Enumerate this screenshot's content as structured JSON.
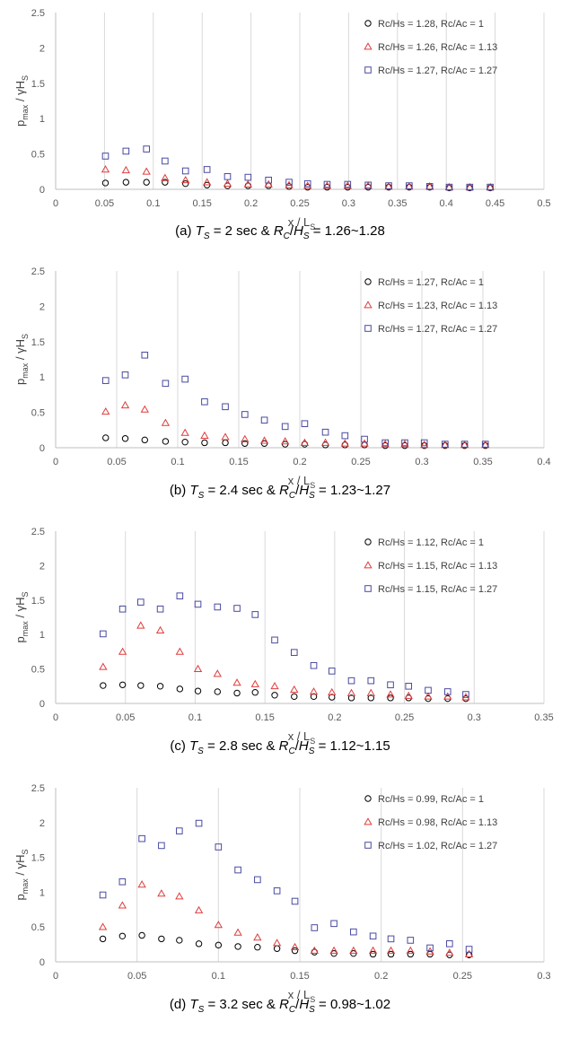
{
  "captions": [
    {
      "label": "(a)",
      "T": "T",
      "Tsub": "S",
      "t_val": "= 2 sec",
      "R": "R",
      "Rsub": "C",
      "H": "H",
      "Hsub": "S",
      "range": "= 1.26~1.28"
    },
    {
      "label": "(b)",
      "T": "T",
      "Tsub": "S",
      "t_val": "= 2.4 sec",
      "R": "R",
      "Rsub": "C",
      "H": "H",
      "Hsub": "S",
      "range": "= 1.23~1.27"
    },
    {
      "label": "(c)",
      "T": "T",
      "Tsub": "S",
      "t_val": "= 2.8 sec",
      "R": "R",
      "Rsub": "C",
      "H": "H",
      "Hsub": "S",
      "range": "= 1.12~1.15"
    },
    {
      "label": "(d)",
      "T": "T",
      "Tsub": "S",
      "t_val": "= 3.2 sec",
      "R": "R",
      "Rsub": "C",
      "H": "H",
      "Hsub": "S",
      "range": "= 0.98~1.02"
    }
  ],
  "series_colors": {
    "circle": "#000000",
    "triangle": "#e03c3c",
    "square": "#4a4aa0"
  },
  "chart_data": [
    {
      "type": "scatter",
      "xlabel": "x / L",
      "xlabel_sub": "S",
      "ylabel": "p",
      "ylabel_sub": "max",
      "ylabel_mid": " / γH",
      "ylabel_sub2": "S",
      "xlim": [
        0,
        0.5
      ],
      "ylim": [
        0,
        2.5
      ],
      "xticks": [
        0,
        0.05,
        0.1,
        0.15,
        0.2,
        0.25,
        0.3,
        0.35,
        0.4,
        0.45,
        0.5
      ],
      "xtick_labels": [
        "0",
        "0.05",
        "0.1",
        "0.15",
        "0.2",
        "0.25",
        "0.3",
        "0.35",
        "0.4",
        "0.45",
        "0.5"
      ],
      "yticks": [
        0,
        0.5,
        1,
        1.5,
        2,
        2.5
      ],
      "ytick_labels": [
        "0",
        "0.5",
        "1",
        "1.5",
        "2",
        "2.5"
      ],
      "grid": "vertical",
      "legend": "top-right",
      "series": [
        {
          "name": "Rc/Hs = 1.28, Rc/Ac = 1",
          "marker": "circle",
          "x": [
            0.051,
            0.072,
            0.093,
            0.112,
            0.133,
            0.155,
            0.176,
            0.197,
            0.218,
            0.239,
            0.258,
            0.278,
            0.299,
            0.32,
            0.341,
            0.362,
            0.383,
            0.403,
            0.424,
            0.445
          ],
          "y": [
            0.09,
            0.1,
            0.1,
            0.1,
            0.08,
            0.06,
            0.05,
            0.05,
            0.05,
            0.04,
            0.03,
            0.03,
            0.03,
            0.03,
            0.03,
            0.03,
            0.03,
            0.02,
            0.02,
            0.02
          ]
        },
        {
          "name": "Rc/Hs = 1.26, Rc/Ac = 1.13",
          "marker": "triangle",
          "x": [
            0.051,
            0.072,
            0.093,
            0.112,
            0.133,
            0.155,
            0.176,
            0.197,
            0.218,
            0.239,
            0.258,
            0.278,
            0.299,
            0.32,
            0.341,
            0.362,
            0.383,
            0.403,
            0.424,
            0.445
          ],
          "y": [
            0.28,
            0.27,
            0.25,
            0.16,
            0.13,
            0.1,
            0.08,
            0.07,
            0.07,
            0.06,
            0.05,
            0.05,
            0.05,
            0.05,
            0.04,
            0.04,
            0.04,
            0.03,
            0.03,
            0.03
          ]
        },
        {
          "name": "Rc/Hs = 1.27, Rc/Ac = 1.27",
          "marker": "square",
          "x": [
            0.051,
            0.072,
            0.093,
            0.112,
            0.133,
            0.155,
            0.176,
            0.197,
            0.218,
            0.239,
            0.258,
            0.278,
            0.299,
            0.32,
            0.341,
            0.362,
            0.383,
            0.403,
            0.424,
            0.445
          ],
          "y": [
            0.47,
            0.54,
            0.57,
            0.4,
            0.26,
            0.28,
            0.18,
            0.17,
            0.13,
            0.1,
            0.08,
            0.07,
            0.07,
            0.06,
            0.05,
            0.05,
            0.04,
            0.03,
            0.03,
            0.03
          ]
        }
      ]
    },
    {
      "type": "scatter",
      "xlabel": "x / L",
      "xlabel_sub": "S",
      "ylabel": "p",
      "ylabel_sub": "max",
      "ylabel_mid": " / γH",
      "ylabel_sub2": "S",
      "xlim": [
        0,
        0.4
      ],
      "ylim": [
        0,
        2.5
      ],
      "xticks": [
        0,
        0.05,
        0.1,
        0.15,
        0.2,
        0.25,
        0.3,
        0.35,
        0.4
      ],
      "xtick_labels": [
        "0",
        "0.05",
        "0.1",
        "0.15",
        "0.2",
        "0.25",
        "0.3",
        "0.35",
        "0.4"
      ],
      "yticks": [
        0,
        0.5,
        1,
        1.5,
        2,
        2.5
      ],
      "ytick_labels": [
        "0",
        "0.5",
        "1",
        "1.5",
        "2",
        "2.5"
      ],
      "grid": "vertical",
      "legend": "top-right",
      "series": [
        {
          "name": "Rc/Hs = 1.27, Rc/Ac = 1",
          "marker": "circle",
          "x": [
            0.041,
            0.057,
            0.073,
            0.09,
            0.106,
            0.122,
            0.139,
            0.155,
            0.171,
            0.188,
            0.204,
            0.221,
            0.237,
            0.253,
            0.27,
            0.286,
            0.302,
            0.319,
            0.335,
            0.352
          ],
          "y": [
            0.14,
            0.13,
            0.11,
            0.09,
            0.08,
            0.07,
            0.07,
            0.06,
            0.06,
            0.05,
            0.05,
            0.04,
            0.04,
            0.04,
            0.03,
            0.03,
            0.03,
            0.03,
            0.03,
            0.03
          ]
        },
        {
          "name": "Rc/Hs = 1.23, Rc/Ac = 1.13",
          "marker": "triangle",
          "x": [
            0.041,
            0.057,
            0.073,
            0.09,
            0.106,
            0.122,
            0.139,
            0.155,
            0.171,
            0.188,
            0.204,
            0.221,
            0.237,
            0.253,
            0.27,
            0.286,
            0.302,
            0.319,
            0.335,
            0.352
          ],
          "y": [
            0.51,
            0.6,
            0.54,
            0.35,
            0.21,
            0.17,
            0.15,
            0.12,
            0.1,
            0.09,
            0.07,
            0.07,
            0.06,
            0.06,
            0.05,
            0.05,
            0.04,
            0.04,
            0.04,
            0.04
          ]
        },
        {
          "name": "Rc/Hs = 1.27, Rc/Ac = 1.27",
          "marker": "square",
          "x": [
            0.041,
            0.057,
            0.073,
            0.09,
            0.106,
            0.122,
            0.139,
            0.155,
            0.171,
            0.188,
            0.204,
            0.221,
            0.237,
            0.253,
            0.27,
            0.286,
            0.302,
            0.319,
            0.335,
            0.352
          ],
          "y": [
            0.95,
            1.03,
            1.31,
            0.91,
            0.97,
            0.65,
            0.58,
            0.47,
            0.39,
            0.3,
            0.34,
            0.22,
            0.17,
            0.12,
            0.07,
            0.07,
            0.07,
            0.05,
            0.05,
            0.05
          ]
        }
      ]
    },
    {
      "type": "scatter",
      "xlabel": "x / L",
      "xlabel_sub": "S",
      "ylabel": "p",
      "ylabel_sub": "max",
      "ylabel_mid": " / γH",
      "ylabel_sub2": "S",
      "xlim": [
        0,
        0.35
      ],
      "ylim": [
        0,
        2.5
      ],
      "xticks": [
        0,
        0.05,
        0.1,
        0.15,
        0.2,
        0.25,
        0.3,
        0.35
      ],
      "xtick_labels": [
        "0",
        "0.05",
        "0.1",
        "0.15",
        "0.2",
        "0.25",
        "0.3",
        "0.35"
      ],
      "yticks": [
        0,
        0.5,
        1,
        1.5,
        2,
        2.5
      ],
      "ytick_labels": [
        "0",
        "0.5",
        "1",
        "1.5",
        "2",
        "2.5"
      ],
      "grid": "vertical",
      "legend": "top-right",
      "series": [
        {
          "name": "Rc/Hs = 1.12, Rc/Ac = 1",
          "marker": "circle",
          "x": [
            0.034,
            0.048,
            0.061,
            0.075,
            0.089,
            0.102,
            0.116,
            0.13,
            0.143,
            0.157,
            0.171,
            0.185,
            0.198,
            0.212,
            0.226,
            0.24,
            0.253,
            0.267,
            0.281,
            0.294
          ],
          "y": [
            0.26,
            0.27,
            0.26,
            0.25,
            0.21,
            0.18,
            0.17,
            0.15,
            0.16,
            0.12,
            0.1,
            0.1,
            0.09,
            0.08,
            0.08,
            0.08,
            0.08,
            0.07,
            0.07,
            0.07
          ]
        },
        {
          "name": "Rc/Hs = 1.15, Rc/Ac = 1.13",
          "marker": "triangle",
          "x": [
            0.034,
            0.048,
            0.061,
            0.075,
            0.089,
            0.102,
            0.116,
            0.13,
            0.143,
            0.157,
            0.171,
            0.185,
            0.198,
            0.212,
            0.226,
            0.24,
            0.253,
            0.267,
            0.281,
            0.294
          ],
          "y": [
            0.53,
            0.75,
            1.13,
            1.06,
            0.75,
            0.5,
            0.43,
            0.3,
            0.28,
            0.25,
            0.2,
            0.17,
            0.16,
            0.15,
            0.15,
            0.13,
            0.11,
            0.1,
            0.1,
            0.09
          ]
        },
        {
          "name": "Rc/Hs = 1.15, Rc/Ac = 1.27",
          "marker": "square",
          "x": [
            0.034,
            0.048,
            0.061,
            0.075,
            0.089,
            0.102,
            0.116,
            0.13,
            0.143,
            0.157,
            0.171,
            0.185,
            0.198,
            0.212,
            0.226,
            0.24,
            0.253,
            0.267,
            0.281,
            0.294
          ],
          "y": [
            1.01,
            1.37,
            1.47,
            1.37,
            1.56,
            1.44,
            1.4,
            1.38,
            1.29,
            0.92,
            0.74,
            0.55,
            0.47,
            0.33,
            0.33,
            0.27,
            0.25,
            0.19,
            0.17,
            0.13
          ]
        }
      ]
    },
    {
      "type": "scatter",
      "xlabel": "x / L",
      "xlabel_sub": "S",
      "ylabel": "p",
      "ylabel_sub": "max",
      "ylabel_mid": " / γH",
      "ylabel_sub2": "S",
      "xlim": [
        0,
        0.3
      ],
      "ylim": [
        0,
        2.5
      ],
      "xticks": [
        0,
        0.05,
        0.1,
        0.15,
        0.2,
        0.25,
        0.3
      ],
      "xtick_labels": [
        "0",
        "0.05",
        "0.1",
        "0.15",
        "0.2",
        "0.25",
        "0.3"
      ],
      "yticks": [
        0,
        0.5,
        1,
        1.5,
        2,
        2.5
      ],
      "ytick_labels": [
        "0",
        "0.5",
        "1",
        "1.5",
        "2",
        "2.5"
      ],
      "grid": "vertical",
      "legend": "top-right",
      "series": [
        {
          "name": "Rc/Hs = 0.99, Rc/Ac = 1",
          "marker": "circle",
          "x": [
            0.029,
            0.041,
            0.053,
            0.065,
            0.076,
            0.088,
            0.1,
            0.112,
            0.124,
            0.136,
            0.147,
            0.159,
            0.171,
            0.183,
            0.195,
            0.206,
            0.218,
            0.23,
            0.242,
            0.254
          ],
          "y": [
            0.33,
            0.37,
            0.38,
            0.33,
            0.31,
            0.26,
            0.24,
            0.22,
            0.21,
            0.19,
            0.16,
            0.14,
            0.12,
            0.12,
            0.11,
            0.11,
            0.11,
            0.11,
            0.1,
            0.1
          ]
        },
        {
          "name": "Rc/Hs = 0.98, Rc/Ac = 1.13",
          "marker": "triangle",
          "x": [
            0.029,
            0.041,
            0.053,
            0.065,
            0.076,
            0.088,
            0.1,
            0.112,
            0.124,
            0.136,
            0.147,
            0.159,
            0.171,
            0.183,
            0.195,
            0.206,
            0.218,
            0.23,
            0.242,
            0.254
          ],
          "y": [
            0.5,
            0.81,
            1.11,
            0.98,
            0.94,
            0.74,
            0.53,
            0.42,
            0.35,
            0.27,
            0.21,
            0.16,
            0.16,
            0.16,
            0.16,
            0.16,
            0.16,
            0.15,
            0.13,
            0.11
          ]
        },
        {
          "name": "Rc/Hs = 1.02, Rc/Ac = 1.27",
          "marker": "square",
          "x": [
            0.029,
            0.041,
            0.053,
            0.065,
            0.076,
            0.088,
            0.1,
            0.112,
            0.124,
            0.136,
            0.147,
            0.159,
            0.171,
            0.183,
            0.195,
            0.206,
            0.218,
            0.23,
            0.242,
            0.254
          ],
          "y": [
            0.96,
            1.15,
            1.77,
            1.67,
            1.88,
            1.99,
            1.65,
            1.32,
            1.18,
            1.02,
            0.87,
            0.49,
            0.55,
            0.43,
            0.37,
            0.33,
            0.31,
            0.2,
            0.26,
            0.18
          ]
        }
      ]
    }
  ]
}
